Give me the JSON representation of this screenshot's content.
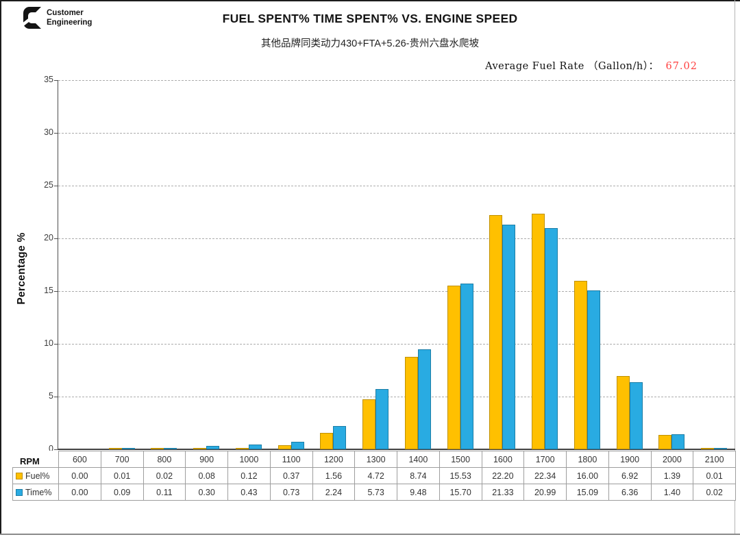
{
  "page": {
    "logo": {
      "brand": "Cummins",
      "line1": "Customer",
      "line2": "Engineering"
    },
    "title": "FUEL SPENT% TIME SPENT% VS. ENGINE SPEED",
    "subtitle": "其他品牌同类动力430+FTA+5.26-贵州六盘水爬坡",
    "fuel_rate_label": "Average Fuel Rate （Gallon/h）：",
    "fuel_rate_value": "67.02",
    "fuel_rate_value_color": "#ff4040"
  },
  "chart_data": {
    "type": "bar",
    "title": "FUEL SPENT% TIME SPENT% VS. ENGINE SPEED",
    "subtitle": "其他品牌同类动力430+FTA+5.26-贵州六盘水爬坡",
    "xlabel": "RPM",
    "ylabel": "Percentage %",
    "ylim": [
      0,
      35
    ],
    "ytick_step": 5,
    "grid": "horizontal-dashed",
    "legend_position": "table-left-column",
    "categories": [
      600,
      700,
      800,
      900,
      1000,
      1100,
      1200,
      1300,
      1400,
      1500,
      1600,
      1700,
      1800,
      1900,
      2000,
      2100
    ],
    "series": [
      {
        "name": "Fuel%",
        "color": "#FFC000",
        "border_color": "#BF9000",
        "values": [
          0.0,
          0.01,
          0.02,
          0.08,
          0.12,
          0.37,
          1.56,
          4.72,
          8.74,
          15.53,
          22.2,
          22.34,
          16.0,
          6.92,
          1.39,
          0.01
        ]
      },
      {
        "name": "Time%",
        "color": "#29ABE2",
        "border_color": "#1B7DA6",
        "values": [
          0.0,
          0.09,
          0.11,
          0.3,
          0.43,
          0.73,
          2.24,
          5.73,
          9.48,
          15.7,
          21.33,
          20.99,
          15.09,
          6.36,
          1.4,
          0.02
        ]
      }
    ]
  },
  "table": {
    "corner_label": "RPM"
  },
  "colors": {
    "gridline": "#ababab",
    "axis": "#4d4d4d",
    "table_border": "#9d9d9d"
  }
}
